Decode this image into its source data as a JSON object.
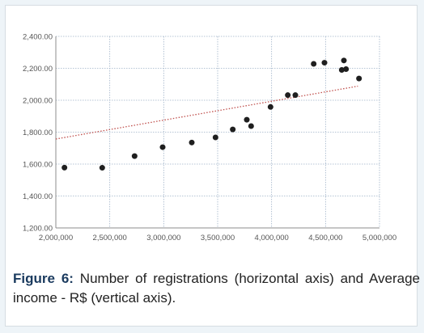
{
  "chart_data": {
    "type": "scatter",
    "title": "",
    "xlabel": "",
    "ylabel": "",
    "xlim": [
      2000000,
      5000000
    ],
    "ylim": [
      1200,
      2400
    ],
    "x_ticks": [
      2000000,
      2500000,
      3000000,
      3500000,
      4000000,
      4500000,
      5000000
    ],
    "x_tick_labels": [
      "2,000,000",
      "2,500,000",
      "3,000,000",
      "3,500,000",
      "4,000,000",
      "4,500,000",
      "5,000,000"
    ],
    "y_ticks": [
      1200,
      1400,
      1600,
      1800,
      2000,
      2200,
      2400
    ],
    "y_tick_labels": [
      "1,200.00",
      "1,400.00",
      "1,600.00",
      "1,800.00",
      "2,000.00",
      "2,200.00",
      "2,400.00"
    ],
    "grid": true,
    "point_color": "#1f1f1f",
    "trendline": {
      "type": "linear",
      "color": "#c0504d",
      "style": "dotted",
      "from": [
        2000000,
        1757
      ],
      "to": [
        4800000,
        2088
      ]
    },
    "series": [
      {
        "points": [
          [
            2080000,
            1578
          ],
          [
            2430000,
            1577
          ],
          [
            2730000,
            1650
          ],
          [
            2990000,
            1706
          ],
          [
            3260000,
            1735
          ],
          [
            3480000,
            1767
          ],
          [
            3640000,
            1817
          ],
          [
            3770000,
            1878
          ],
          [
            3810000,
            1838
          ],
          [
            3990000,
            1958
          ],
          [
            4150000,
            2032
          ],
          [
            4220000,
            2032
          ],
          [
            4390000,
            2228
          ],
          [
            4490000,
            2235
          ],
          [
            4650000,
            2190
          ],
          [
            4670000,
            2249
          ],
          [
            4690000,
            2195
          ],
          [
            4810000,
            2136
          ]
        ]
      }
    ]
  },
  "caption": {
    "label": "Figure 6:",
    "text": " Number of registrations (horizontal axis) and Average income - R$ (vertical axis)."
  }
}
